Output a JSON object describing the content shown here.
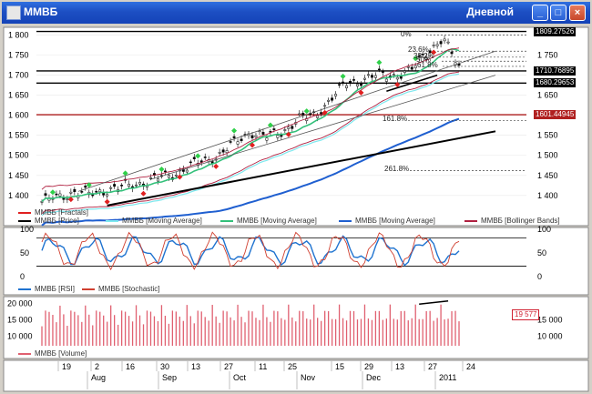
{
  "window": {
    "title": "ММВБ",
    "period": "Дневной",
    "btn_min": "_",
    "btn_max": "□",
    "btn_close": "×"
  },
  "colors": {
    "price": "#000000",
    "ma_fast": "#7fe9ef",
    "ma_mid": "#33c07a",
    "ma_slow": "#1f5fd0",
    "bollinger": "#b02040",
    "fractal_up": "#2fd04a",
    "fractal_down": "#e02020",
    "rsi": "#1f73d0",
    "stochastic": "#d04030",
    "volume": "#e06070"
  },
  "price_panel": {
    "y_ticks": [
      "1 800",
      "1 750",
      "1 700",
      "1 650",
      "1 600",
      "1 550",
      "1 500",
      "1 450",
      "1 400"
    ],
    "y_ticks_right": [
      "1 750",
      "1 650",
      "1 550",
      "1 500",
      "1 450",
      "1 400"
    ],
    "levels": [
      {
        "value": "1809.27526",
        "style": "dark"
      },
      {
        "value": "1710.76895",
        "style": "dark"
      },
      {
        "value": "1680.29653",
        "style": "dark"
      },
      {
        "value": "1601.44945",
        "style": "red"
      }
    ],
    "fib_labels": [
      "0%",
      "23.6%",
      "38.2%",
      "50%",
      "61.8%",
      "161.8%",
      "261.8%"
    ],
    "legend": [
      {
        "label": "ММВБ [Fractals]",
        "color": "#e02020"
      },
      {
        "label": "ММВБ [Price]",
        "color": "#000000"
      },
      {
        "label": "ММВБ [Moving Average]",
        "color": "#7fe9ef"
      },
      {
        "label": "ММВБ [Moving Average]",
        "color": "#33c07a"
      },
      {
        "label": "ММВБ [Moving Average]",
        "color": "#1f5fd0"
      },
      {
        "label": "ММВБ [Bollinger Bands]",
        "color": "#b02040"
      }
    ]
  },
  "osc_panel": {
    "y_ticks": [
      "100",
      "50",
      "0"
    ],
    "y_ticks_right": [
      "100",
      "50",
      "0"
    ],
    "legend": [
      {
        "label": "ММВБ [RSI]",
        "color": "#1f73d0"
      },
      {
        "label": "ММВБ [Stochastic]",
        "color": "#d04030"
      }
    ]
  },
  "volume_panel": {
    "y_ticks": [
      "20 000",
      "15 000",
      "10 000"
    ],
    "y_ticks_right": [
      "15 000",
      "10 000"
    ],
    "last_value": "19 577",
    "legend": [
      {
        "label": "ММВБ [Volume]",
        "color": "#e06070"
      }
    ]
  },
  "x_axis": {
    "days": [
      "19",
      "2",
      "16",
      "30",
      "13",
      "27",
      "11",
      "25",
      "15",
      "29",
      "13",
      "27",
      "24"
    ],
    "months": [
      "Aug",
      "Sep",
      "Oct",
      "Nov",
      "Dec",
      "2011"
    ]
  },
  "chart_data": {
    "type": "line",
    "series": [
      {
        "name": "ММВБ [Price]",
        "approx_close_by_week": [
          1385,
          1395,
          1410,
          1402,
          1415,
          1420,
          1430,
          1440,
          1450,
          1470,
          1485,
          1500,
          1530,
          1560,
          1545,
          1560,
          1590,
          1600,
          1640,
          1680,
          1690,
          1700,
          1700,
          1710,
          1760,
          1790,
          1720
        ]
      },
      {
        "name": "ММВБ [RSI]"
      },
      {
        "name": "ММВБ [Stochastic]"
      },
      {
        "name": "ММВБ [Volume]"
      }
    ],
    "ylim": [
      1370,
      1815
    ]
  }
}
